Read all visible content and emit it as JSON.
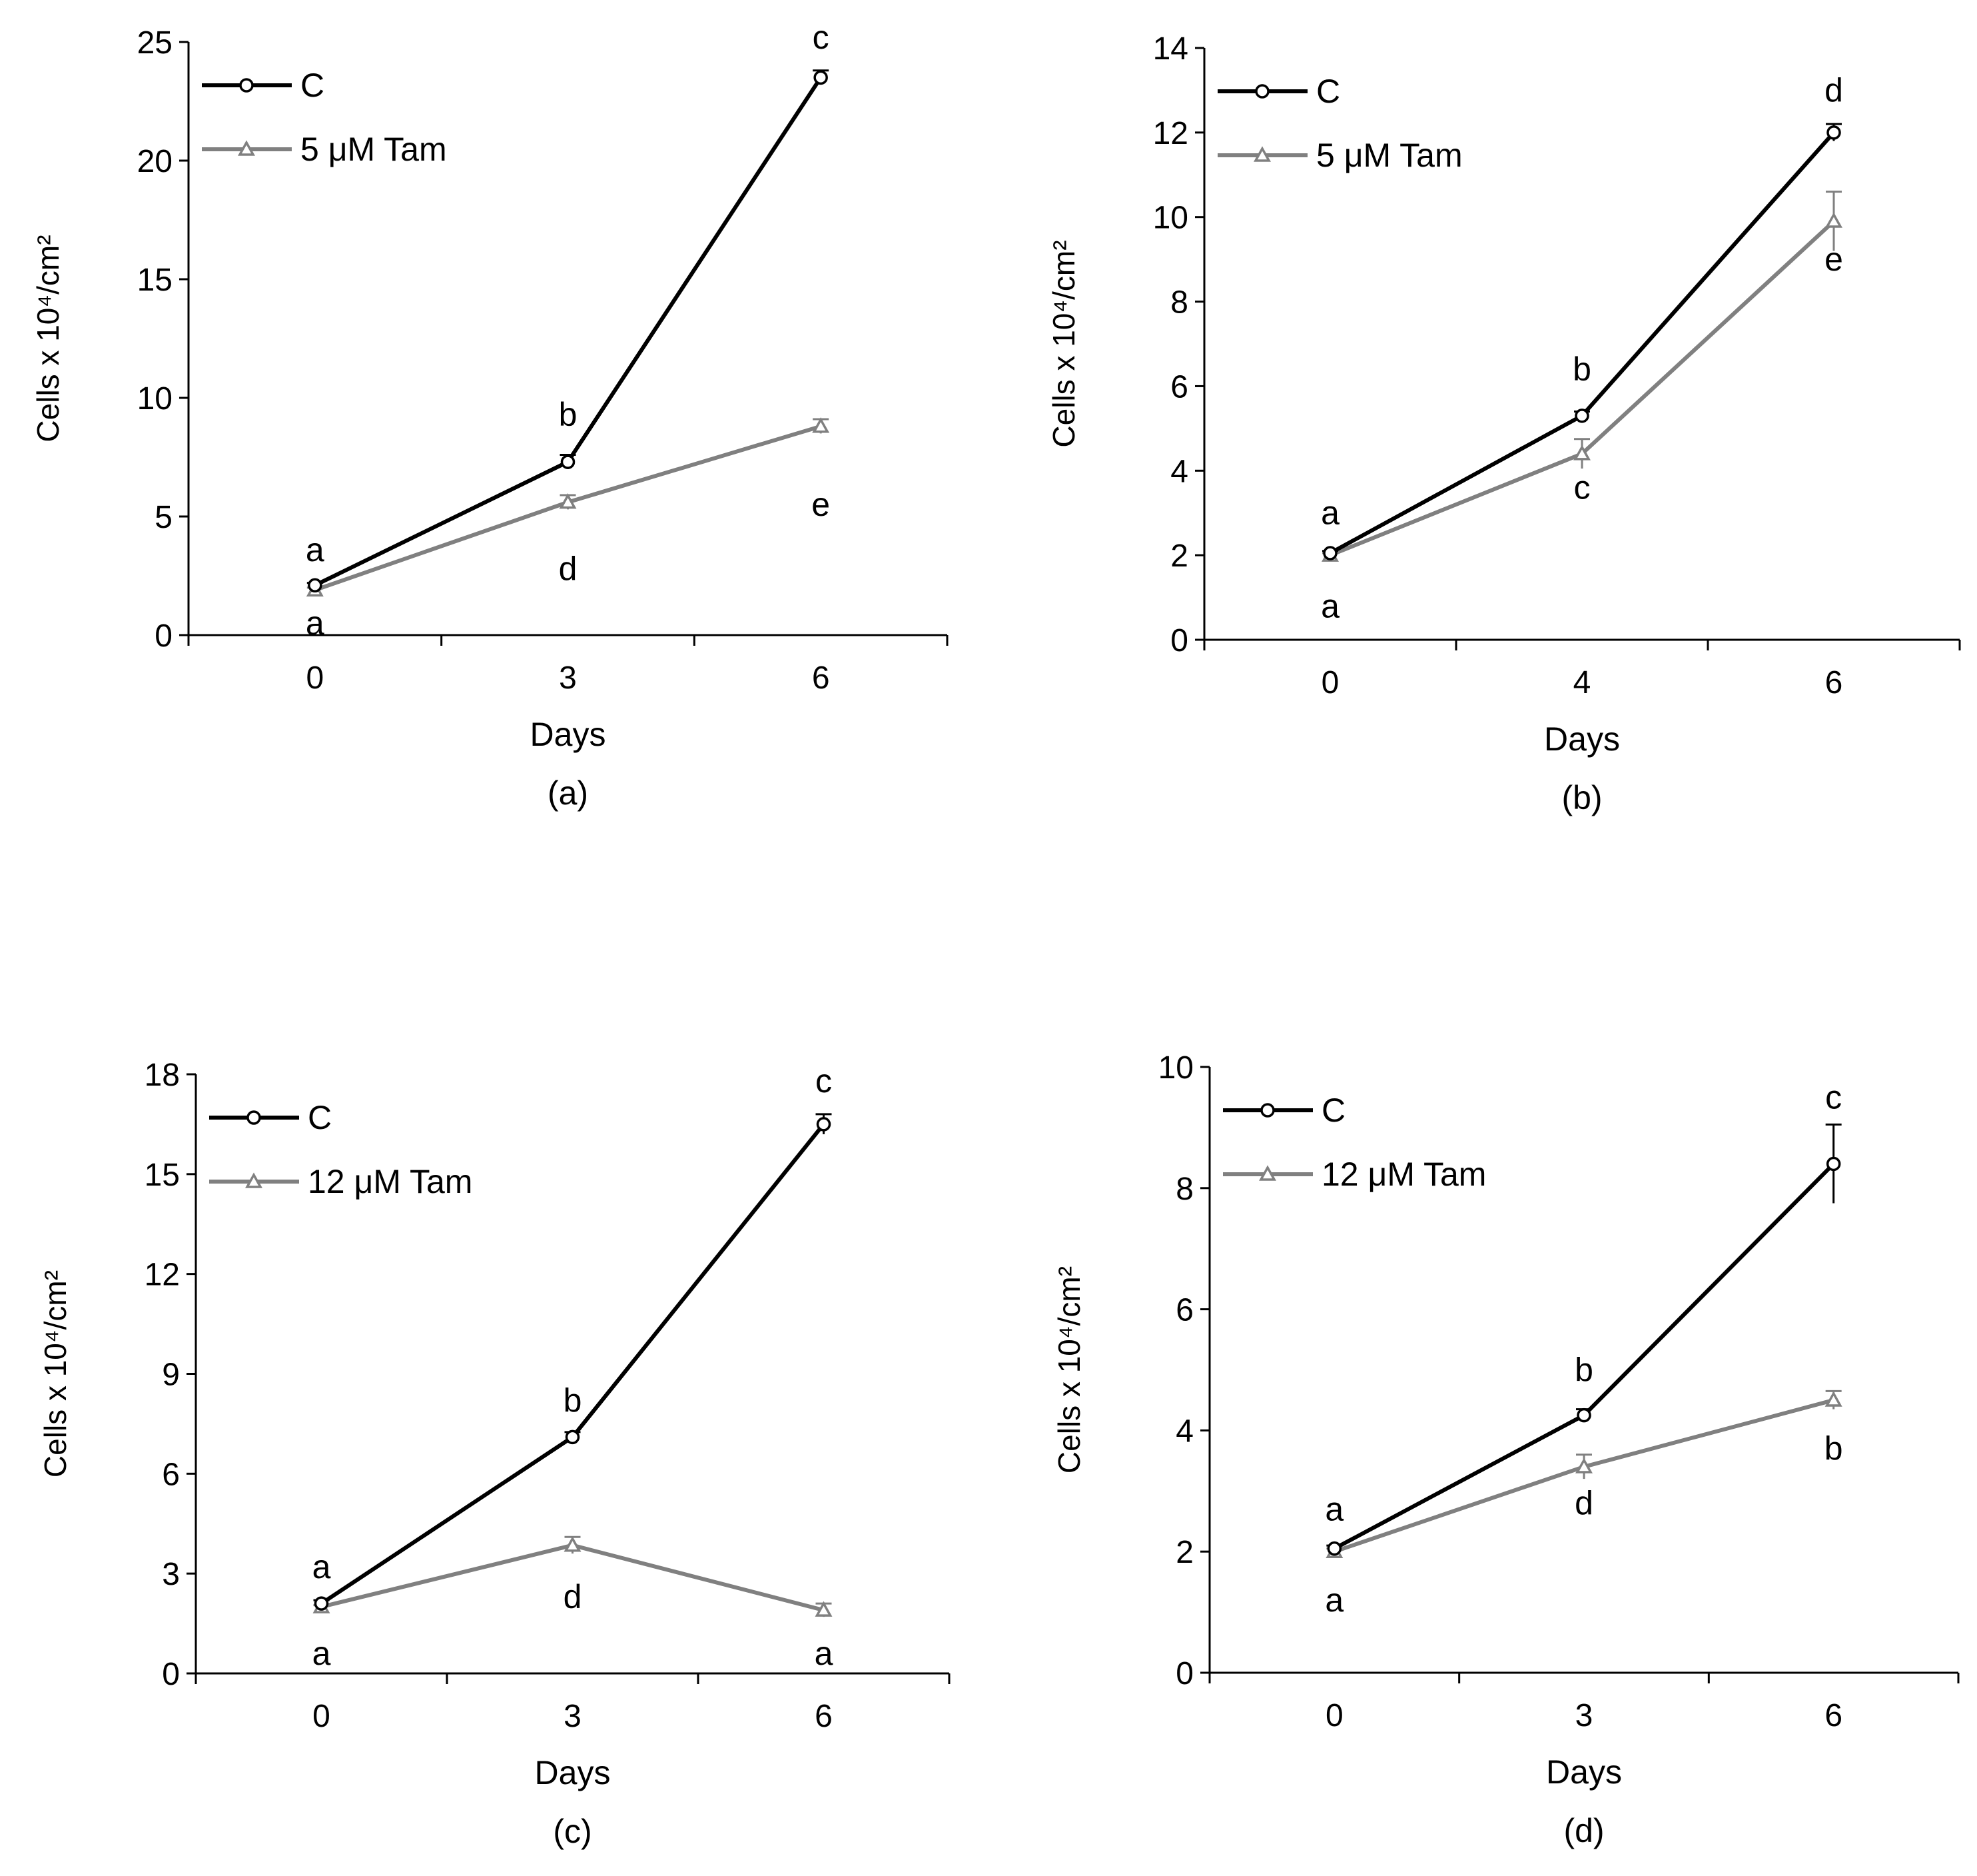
{
  "colors": {
    "control": "#000000",
    "tamoxifen": "#808080",
    "axis": "#000000"
  },
  "chart_data": [
    {
      "panel": "(a)",
      "type": "line",
      "xlabel": "Days",
      "ylabel": "Cells x 10⁴/cm²",
      "categories": [
        "0",
        "3",
        "6"
      ],
      "ylim": [
        0,
        25
      ],
      "yticks": [
        0,
        5,
        10,
        15,
        20,
        25
      ],
      "legend_position": "top-left",
      "series": [
        {
          "name": "C",
          "marker": "circle",
          "values": [
            2.1,
            7.3,
            23.5
          ],
          "errors": [
            0.1,
            0.3,
            0.3
          ],
          "letters": [
            {
              "text": "a",
              "value": 3.6
            },
            {
              "text": "b",
              "value": 9.3
            },
            {
              "text": "c",
              "value": 25.2
            }
          ]
        },
        {
          "name": "5 μM Tam",
          "marker": "triangle",
          "values": [
            1.9,
            5.6,
            8.8
          ],
          "errors": [
            0.1,
            0.3,
            0.3
          ],
          "letters": [
            {
              "text": "a",
              "value": 0.5
            },
            {
              "text": "d",
              "value": 2.8
            },
            {
              "text": "e",
              "value": 5.5
            }
          ]
        }
      ]
    },
    {
      "panel": "(b)",
      "type": "line",
      "xlabel": "Days",
      "ylabel": "Cells x 10⁴/cm²",
      "categories": [
        "0",
        "4",
        "6"
      ],
      "ylim": [
        0,
        14
      ],
      "yticks": [
        0,
        2,
        4,
        6,
        8,
        10,
        12,
        14
      ],
      "legend_position": "top-left",
      "series": [
        {
          "name": "C",
          "marker": "circle",
          "values": [
            2.05,
            5.3,
            12.0
          ],
          "errors": [
            0.05,
            0.1,
            0.2
          ],
          "letters": [
            {
              "text": "a",
              "value": 3.0
            },
            {
              "text": "b",
              "value": 6.4
            },
            {
              "text": "d",
              "value": 13.0
            }
          ]
        },
        {
          "name": "5 μM Tam",
          "marker": "triangle",
          "values": [
            2.0,
            4.4,
            9.9
          ],
          "errors": [
            0.05,
            0.35,
            0.7
          ],
          "letters": [
            {
              "text": "a",
              "value": 0.8
            },
            {
              "text": "c",
              "value": 3.6
            },
            {
              "text": "e",
              "value": 9.0
            }
          ]
        }
      ]
    },
    {
      "panel": "(c)",
      "type": "line",
      "xlabel": "Days",
      "ylabel": "Cells x 10⁴/cm²",
      "categories": [
        "0",
        "3",
        "6"
      ],
      "ylim": [
        0,
        18
      ],
      "yticks": [
        0,
        3,
        6,
        9,
        12,
        15,
        18
      ],
      "legend_position": "top-left",
      "series": [
        {
          "name": "C",
          "marker": "circle",
          "values": [
            2.1,
            7.1,
            16.5
          ],
          "errors": [
            0.1,
            0.15,
            0.3
          ],
          "letters": [
            {
              "text": "a",
              "value": 3.2
            },
            {
              "text": "b",
              "value": 8.2
            },
            {
              "text": "c",
              "value": 17.8
            }
          ]
        },
        {
          "name": "12 μM Tam",
          "marker": "triangle",
          "values": [
            2.0,
            3.85,
            1.9
          ],
          "errors": [
            0.05,
            0.25,
            0.2
          ],
          "letters": [
            {
              "text": "a",
              "value": 0.6
            },
            {
              "text": "d",
              "value": 2.3
            },
            {
              "text": "a",
              "value": 0.6
            }
          ]
        }
      ]
    },
    {
      "panel": "(d)",
      "type": "line",
      "xlabel": "Days",
      "ylabel": "Cells x 10⁴/cm²",
      "categories": [
        "0",
        "3",
        "6"
      ],
      "ylim": [
        0,
        10
      ],
      "yticks": [
        0,
        2,
        4,
        6,
        8,
        10
      ],
      "legend_position": "top-left",
      "series": [
        {
          "name": "C",
          "marker": "circle",
          "values": [
            2.05,
            4.25,
            8.4
          ],
          "errors": [
            0.05,
            0.1,
            0.65
          ],
          "letters": [
            {
              "text": "a",
              "value": 2.7
            },
            {
              "text": "b",
              "value": 5.0
            },
            {
              "text": "c",
              "value": 9.5
            }
          ]
        },
        {
          "name": "12 μM Tam",
          "marker": "triangle",
          "values": [
            2.0,
            3.4,
            4.5
          ],
          "errors": [
            0.05,
            0.2,
            0.15
          ],
          "letters": [
            {
              "text": "a",
              "value": 1.2
            },
            {
              "text": "d",
              "value": 2.8
            },
            {
              "text": "b",
              "value": 3.7
            }
          ]
        }
      ]
    }
  ]
}
